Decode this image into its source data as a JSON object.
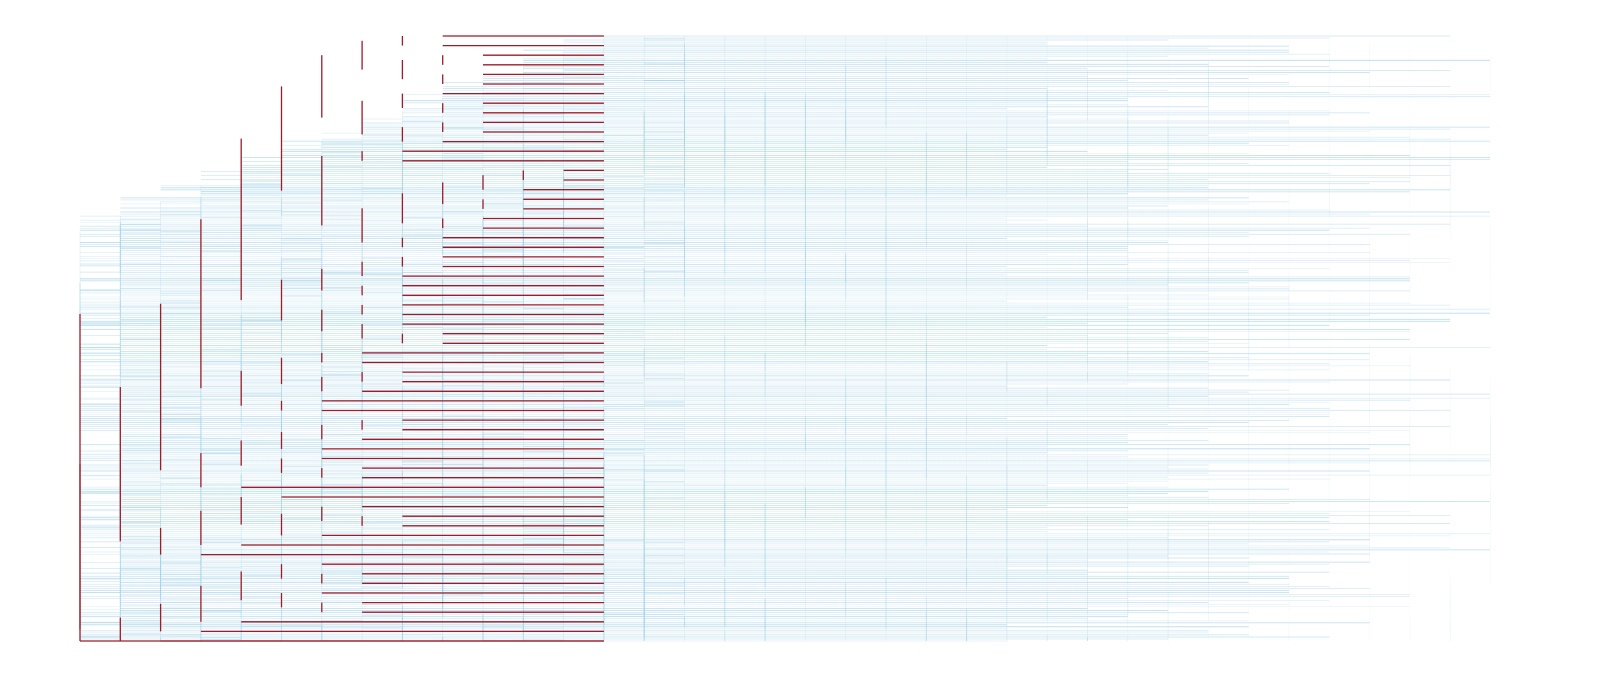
{
  "diagram": {
    "type": "dendrogram",
    "orientation": "left-to-right",
    "background_color": "#ffffff",
    "tree_color": "#a6d3e6",
    "highlight_color": "#9b1c2b",
    "depth_levels": 36,
    "highlighted_depth": 13,
    "leaf_count": 64,
    "labels": []
  }
}
